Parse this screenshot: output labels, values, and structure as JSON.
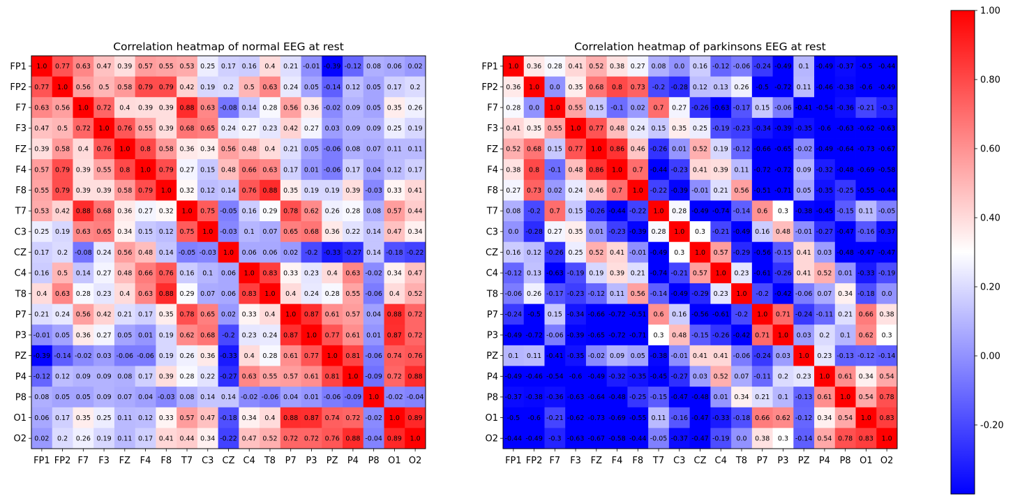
{
  "chart_data": {
    "type": "heatmap",
    "labels": [
      "FP1",
      "FP2",
      "F7",
      "F3",
      "FZ",
      "F4",
      "F8",
      "T7",
      "C3",
      "CZ",
      "C4",
      "T8",
      "P7",
      "P3",
      "PZ",
      "P4",
      "P8",
      "O1",
      "O2"
    ],
    "colormap": {
      "name": "bwr",
      "min_color": "#0000ff",
      "mid_color": "#ffffff",
      "max_color": "#ff0000",
      "vmin": -0.4,
      "vmax": 1.0
    },
    "colorbar": {
      "ticks": [
        -0.2,
        0.0,
        0.2,
        0.4,
        0.6,
        0.8,
        1.0
      ],
      "tick_labels": [
        "-0.20",
        "0.00",
        "0.20",
        "0.40",
        "0.60",
        "0.80",
        "1.00"
      ]
    },
    "charts": [
      {
        "title": "Correlation heatmap of normal EEG at rest",
        "values": [
          [
            1.0,
            0.77,
            0.63,
            0.47,
            0.39,
            0.57,
            0.55,
            0.53,
            0.25,
            0.17,
            0.16,
            0.4,
            0.21,
            -0.01,
            -0.39,
            -0.12,
            0.08,
            0.06,
            0.02
          ],
          [
            0.77,
            1.0,
            0.56,
            0.5,
            0.58,
            0.79,
            0.79,
            0.42,
            0.19,
            0.2,
            0.5,
            0.63,
            0.24,
            0.05,
            -0.14,
            0.12,
            0.05,
            0.17,
            0.2
          ],
          [
            0.63,
            0.56,
            1.0,
            0.72,
            0.4,
            0.39,
            0.39,
            0.88,
            0.63,
            -0.08,
            0.14,
            0.28,
            0.56,
            0.36,
            -0.02,
            0.09,
            0.05,
            0.35,
            0.26
          ],
          [
            0.47,
            0.5,
            0.72,
            1.0,
            0.76,
            0.55,
            0.39,
            0.68,
            0.65,
            0.24,
            0.27,
            0.23,
            0.42,
            0.27,
            0.03,
            0.09,
            0.09,
            0.25,
            0.19
          ],
          [
            0.39,
            0.58,
            0.4,
            0.76,
            1.0,
            0.8,
            0.58,
            0.36,
            0.34,
            0.56,
            0.48,
            0.4,
            0.21,
            0.05,
            -0.06,
            0.08,
            0.07,
            0.11,
            0.11
          ],
          [
            0.57,
            0.79,
            0.39,
            0.55,
            0.8,
            1.0,
            0.79,
            0.27,
            0.15,
            0.48,
            0.66,
            0.63,
            0.17,
            0.01,
            -0.06,
            0.17,
            0.04,
            0.12,
            0.17
          ],
          [
            0.55,
            0.79,
            0.39,
            0.39,
            0.58,
            0.79,
            1.0,
            0.32,
            0.12,
            0.14,
            0.76,
            0.88,
            0.35,
            0.19,
            0.19,
            0.39,
            -0.03,
            0.33,
            0.41
          ],
          [
            0.53,
            0.42,
            0.88,
            0.68,
            0.36,
            0.27,
            0.32,
            1.0,
            0.75,
            -0.05,
            0.16,
            0.29,
            0.78,
            0.62,
            0.26,
            0.28,
            0.08,
            0.57,
            0.44
          ],
          [
            0.25,
            0.19,
            0.63,
            0.65,
            0.34,
            0.15,
            0.12,
            0.75,
            1.0,
            -0.03,
            0.1,
            0.07,
            0.65,
            0.68,
            0.36,
            0.22,
            0.14,
            0.47,
            0.34
          ],
          [
            0.17,
            0.2,
            -0.08,
            0.24,
            0.56,
            0.48,
            0.14,
            -0.05,
            -0.03,
            1.0,
            0.06,
            0.06,
            0.02,
            -0.2,
            -0.33,
            -0.27,
            0.14,
            -0.18,
            -0.22
          ],
          [
            0.16,
            0.5,
            0.14,
            0.27,
            0.48,
            0.66,
            0.76,
            0.16,
            0.1,
            0.06,
            1.0,
            0.83,
            0.33,
            0.23,
            0.4,
            0.63,
            -0.02,
            0.34,
            0.47
          ],
          [
            0.4,
            0.63,
            0.28,
            0.23,
            0.4,
            0.63,
            0.88,
            0.29,
            0.07,
            0.06,
            0.83,
            1.0,
            0.4,
            0.24,
            0.28,
            0.55,
            -0.06,
            0.4,
            0.52
          ],
          [
            0.21,
            0.24,
            0.56,
            0.42,
            0.21,
            0.17,
            0.35,
            0.78,
            0.65,
            0.02,
            0.33,
            0.4,
            1.0,
            0.87,
            0.61,
            0.57,
            0.04,
            0.88,
            0.72
          ],
          [
            -0.01,
            0.05,
            0.36,
            0.27,
            0.05,
            0.01,
            0.19,
            0.62,
            0.68,
            -0.2,
            0.23,
            0.24,
            0.87,
            1.0,
            0.77,
            0.61,
            0.01,
            0.87,
            0.72
          ],
          [
            -0.39,
            -0.14,
            -0.02,
            0.03,
            -0.06,
            -0.06,
            0.19,
            0.26,
            0.36,
            -0.33,
            0.4,
            0.28,
            0.61,
            0.77,
            1.0,
            0.81,
            -0.06,
            0.74,
            0.76
          ],
          [
            -0.12,
            0.12,
            0.09,
            0.09,
            0.08,
            0.17,
            0.39,
            0.28,
            0.22,
            -0.27,
            0.63,
            0.55,
            0.57,
            0.61,
            0.81,
            1.0,
            -0.09,
            0.72,
            0.88
          ],
          [
            0.08,
            0.05,
            0.05,
            0.09,
            0.07,
            0.04,
            -0.03,
            0.08,
            0.14,
            0.14,
            -0.02,
            -0.06,
            0.04,
            0.01,
            -0.06,
            -0.09,
            1.0,
            -0.02,
            -0.04
          ],
          [
            0.06,
            0.17,
            0.35,
            0.25,
            0.11,
            0.12,
            0.33,
            0.57,
            0.47,
            -0.18,
            0.34,
            0.4,
            0.88,
            0.87,
            0.74,
            0.72,
            -0.02,
            1.0,
            0.89
          ],
          [
            0.02,
            0.2,
            0.26,
            0.19,
            0.11,
            0.17,
            0.41,
            0.44,
            0.34,
            -0.22,
            0.47,
            0.52,
            0.72,
            0.72,
            0.76,
            0.88,
            -0.04,
            0.89,
            1.0
          ]
        ]
      },
      {
        "title": "Correlation heatmap of parkinsons EEG at rest",
        "values": [
          [
            1.0,
            0.36,
            0.28,
            0.41,
            0.52,
            0.38,
            0.27,
            0.08,
            0.0,
            0.16,
            -0.12,
            -0.06,
            -0.24,
            -0.49,
            0.1,
            -0.49,
            -0.37,
            -0.5,
            -0.44
          ],
          [
            0.36,
            1.0,
            0.0,
            0.35,
            0.68,
            0.8,
            0.73,
            -0.2,
            -0.28,
            0.12,
            0.13,
            0.26,
            -0.5,
            -0.72,
            0.11,
            -0.46,
            -0.38,
            -0.6,
            -0.49
          ],
          [
            0.28,
            0.0,
            1.0,
            0.55,
            0.15,
            -0.1,
            0.02,
            0.7,
            0.27,
            -0.26,
            -0.63,
            -0.17,
            0.15,
            -0.06,
            -0.41,
            -0.54,
            -0.36,
            -0.21,
            -0.3
          ],
          [
            0.41,
            0.35,
            0.55,
            1.0,
            0.77,
            0.48,
            0.24,
            0.15,
            0.35,
            0.25,
            -0.19,
            -0.23,
            -0.34,
            -0.39,
            -0.35,
            -0.6,
            -0.63,
            -0.62,
            -0.63
          ],
          [
            0.52,
            0.68,
            0.15,
            0.77,
            1.0,
            0.86,
            0.46,
            -0.26,
            0.01,
            0.52,
            0.19,
            -0.12,
            -0.66,
            -0.65,
            -0.02,
            -0.49,
            -0.64,
            -0.73,
            -0.67
          ],
          [
            0.38,
            0.8,
            -0.1,
            0.48,
            0.86,
            1.0,
            0.7,
            -0.44,
            -0.23,
            0.41,
            0.39,
            0.11,
            -0.72,
            -0.72,
            0.09,
            -0.32,
            -0.48,
            -0.69,
            -0.58
          ],
          [
            0.27,
            0.73,
            0.02,
            0.24,
            0.46,
            0.7,
            1.0,
            -0.22,
            -0.39,
            -0.01,
            0.21,
            0.56,
            -0.51,
            -0.71,
            0.05,
            -0.35,
            -0.25,
            -0.55,
            -0.44
          ],
          [
            0.08,
            -0.2,
            0.7,
            0.15,
            -0.26,
            -0.44,
            -0.22,
            1.0,
            0.28,
            -0.49,
            -0.74,
            -0.14,
            0.6,
            0.3,
            -0.38,
            -0.45,
            -0.15,
            0.11,
            -0.05
          ],
          [
            0.0,
            -0.28,
            0.27,
            0.35,
            0.01,
            -0.23,
            -0.39,
            0.28,
            1.0,
            0.3,
            -0.21,
            -0.49,
            0.16,
            0.48,
            -0.01,
            -0.27,
            -0.47,
            -0.16,
            -0.37
          ],
          [
            0.16,
            0.12,
            -0.26,
            0.25,
            0.52,
            0.41,
            -0.01,
            -0.49,
            0.3,
            1.0,
            0.57,
            -0.29,
            -0.56,
            -0.15,
            0.41,
            0.03,
            -0.48,
            -0.47,
            -0.47
          ],
          [
            -0.12,
            0.13,
            -0.63,
            -0.19,
            0.19,
            0.39,
            0.21,
            -0.74,
            -0.21,
            0.57,
            1.0,
            0.23,
            -0.61,
            -0.26,
            0.41,
            0.52,
            0.01,
            -0.33,
            -0.19
          ],
          [
            -0.06,
            0.26,
            -0.17,
            -0.23,
            -0.12,
            0.11,
            0.56,
            -0.14,
            -0.49,
            -0.29,
            0.23,
            1.0,
            -0.2,
            -0.42,
            -0.06,
            0.07,
            0.34,
            -0.18,
            -0.0
          ],
          [
            -0.24,
            -0.5,
            0.15,
            -0.34,
            -0.66,
            -0.72,
            -0.51,
            0.6,
            0.16,
            -0.56,
            -0.61,
            -0.2,
            1.0,
            0.71,
            -0.24,
            -0.11,
            0.21,
            0.66,
            0.38
          ],
          [
            -0.49,
            -0.72,
            -0.06,
            -0.39,
            -0.65,
            -0.72,
            -0.71,
            0.3,
            0.48,
            -0.15,
            -0.26,
            -0.42,
            0.71,
            1.0,
            0.03,
            0.2,
            0.1,
            0.62,
            0.3
          ],
          [
            0.1,
            0.11,
            -0.41,
            -0.35,
            -0.02,
            0.09,
            0.05,
            -0.38,
            -0.01,
            0.41,
            0.41,
            -0.06,
            -0.24,
            0.03,
            1.0,
            0.23,
            -0.13,
            -0.12,
            -0.14
          ],
          [
            -0.49,
            -0.46,
            -0.54,
            -0.6,
            -0.49,
            -0.32,
            -0.35,
            -0.45,
            -0.27,
            0.03,
            0.52,
            0.07,
            -0.11,
            0.2,
            0.23,
            1.0,
            0.61,
            0.34,
            0.54
          ],
          [
            -0.37,
            -0.38,
            -0.36,
            -0.63,
            -0.64,
            -0.48,
            -0.25,
            -0.15,
            -0.47,
            -0.48,
            0.01,
            0.34,
            0.21,
            0.1,
            -0.13,
            0.61,
            1.0,
            0.54,
            0.78
          ],
          [
            -0.5,
            -0.6,
            -0.21,
            -0.62,
            -0.73,
            -0.69,
            -0.55,
            0.11,
            -0.16,
            -0.47,
            -0.33,
            -0.18,
            0.66,
            0.62,
            -0.12,
            0.34,
            0.54,
            1.0,
            0.83
          ],
          [
            -0.44,
            -0.49,
            -0.3,
            -0.63,
            -0.67,
            -0.58,
            -0.44,
            -0.05,
            -0.37,
            -0.47,
            -0.19,
            -0.0,
            0.38,
            0.3,
            -0.14,
            0.54,
            0.78,
            0.83,
            1.0
          ]
        ]
      }
    ]
  }
}
